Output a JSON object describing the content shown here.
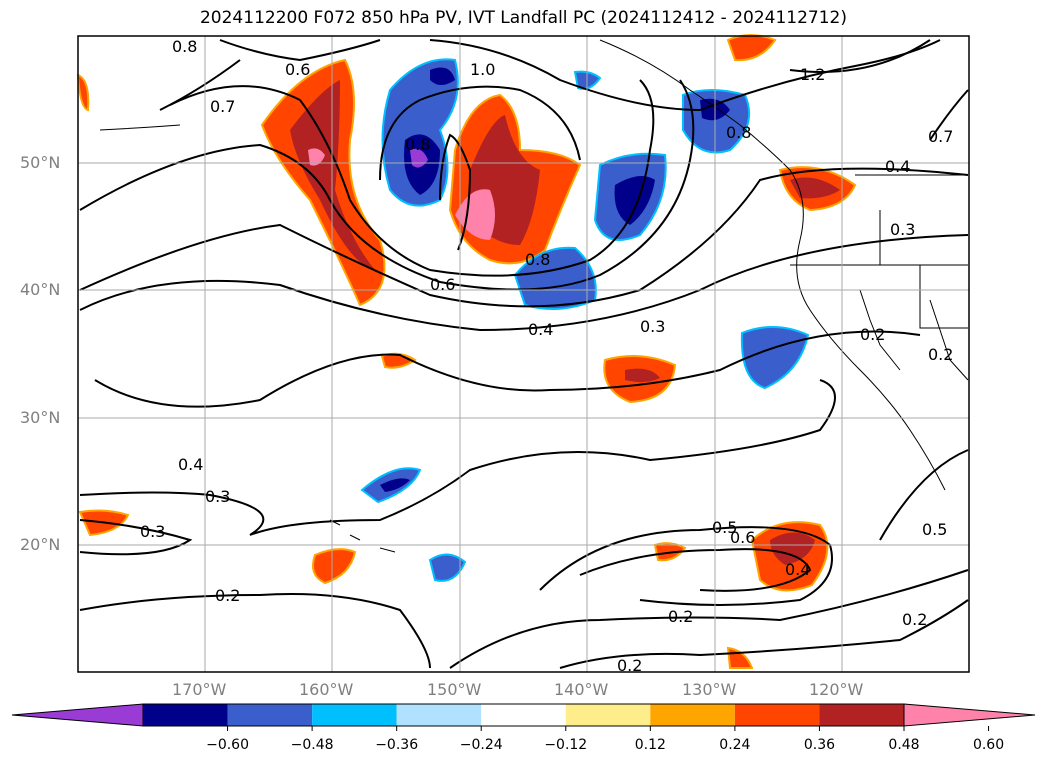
{
  "title": "2024112200 F072 850 hPa PV, IVT Landfall PC (2024112412 - 2024112712)",
  "lat_labels": [
    "50°N",
    "40°N",
    "30°N",
    "20°N"
  ],
  "lon_labels": [
    "170°W",
    "160°W",
    "150°W",
    "140°W",
    "130°W",
    "120°W"
  ],
  "colorbar": {
    "ticks": [
      "−0.60",
      "−0.48",
      "−0.36",
      "−0.24",
      "−0.12",
      "0.12",
      "0.24",
      "0.36",
      "0.48",
      "0.60"
    ],
    "colors": [
      "#9a3bd6",
      "#00008b",
      "#3a5fcd",
      "#00bfff",
      "#b0e2ff",
      "#ffffff",
      "#ffec8b",
      "#ffa500",
      "#ff4500",
      "#b22222",
      "#ff82ab"
    ]
  },
  "contour_labels": [
    "0.8",
    "0.6",
    "0.7",
    "1.0",
    "1.2",
    "0.7",
    "0.8",
    "0.4",
    "0.3",
    "0.6",
    "0.8",
    "0.4",
    "0.3",
    "0.2",
    "0.2",
    "0.4",
    "0.3",
    "0.3",
    "0.2",
    "0.5",
    "0.6",
    "0.4",
    "0.5",
    "0.2",
    "0.2",
    "0.2",
    "0.8"
  ]
}
